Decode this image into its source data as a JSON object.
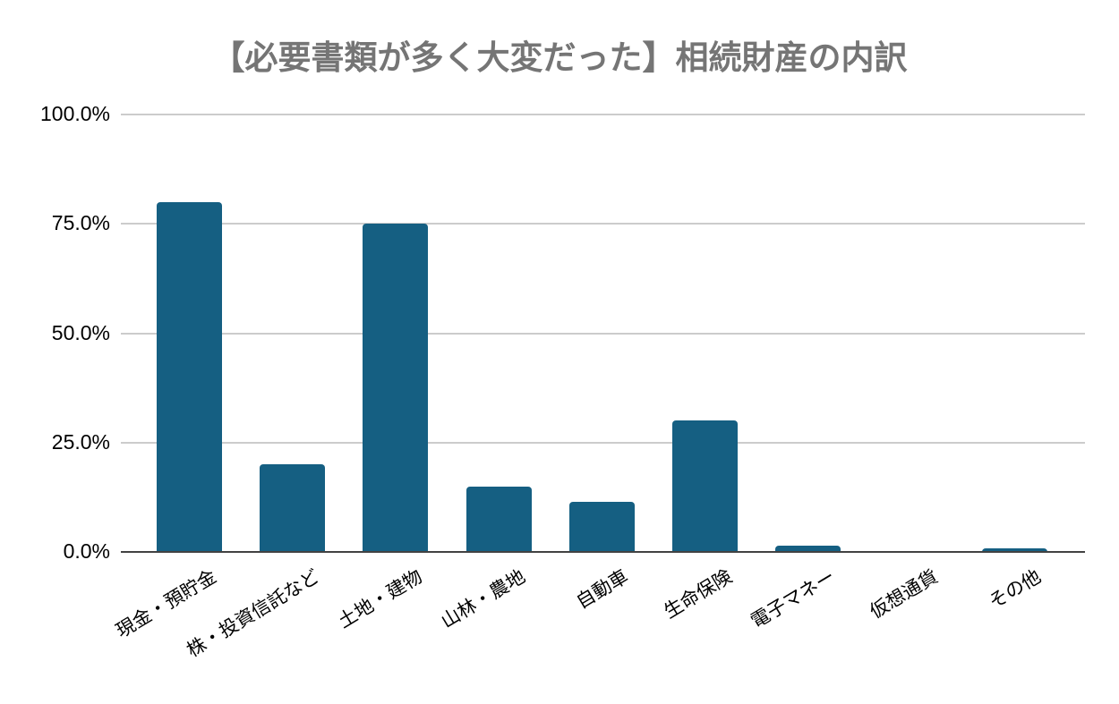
{
  "chart_data": {
    "type": "bar",
    "title": "【必要書類が多く大変だった】相続財産の内訳",
    "categories": [
      "現金・預貯金",
      "株・投資信託など",
      "土地・建物",
      "山林・農地",
      "自動車",
      "生命保険",
      "電子マネー",
      "仮想通貨",
      "その他"
    ],
    "values": [
      80,
      20,
      75,
      15,
      11.5,
      30,
      1.5,
      0.3,
      0.8
    ],
    "series_name": "相続財産の内訳",
    "xlabel": "",
    "ylabel": "",
    "ylim": [
      0,
      100
    ],
    "yticks": [
      {
        "value": 0,
        "label": "0.0%"
      },
      {
        "value": 25,
        "label": "25.0%"
      },
      {
        "value": 50,
        "label": "50.0%"
      },
      {
        "value": 75,
        "label": "75.0%"
      },
      {
        "value": 100,
        "label": "100.0%"
      }
    ],
    "grid": true,
    "legend_position": "none",
    "colors": {
      "bar": "#155F82",
      "title": "#757575",
      "gridline": "#cccccc",
      "baseline": "#424242",
      "axis_label": "#000000",
      "background": "#ffffff"
    }
  }
}
